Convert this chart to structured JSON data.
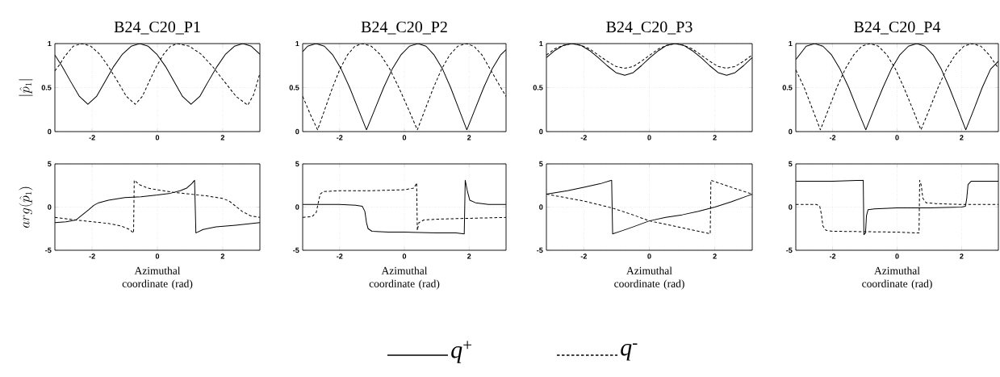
{
  "chart_data": [
    {
      "type": "line",
      "title": "B24_C20_P1",
      "ylabel": "|\\hat{p}_1|",
      "xlim": [
        -3.1416,
        3.1416
      ],
      "ylim": [
        0,
        1
      ],
      "xticks": [
        -2,
        0,
        2
      ],
      "yticks": [
        0,
        0.5,
        1
      ],
      "grid": true,
      "legend": "bottom",
      "series": [
        {
          "name": "*q*$^{+}$",
          "color": "#000000",
          "line_style": "solid",
          "x": [
            -3.14,
            -2.92,
            -2.66,
            -2.39,
            -2.13,
            -1.865,
            -1.6,
            -1.34,
            -1.07,
            -0.805,
            -0.54,
            -0.28,
            -0.02,
            0.25,
            0.51,
            0.77,
            1.03,
            1.3,
            1.56,
            1.83,
            2.09,
            2.36,
            2.62,
            2.88,
            3.14
          ],
          "values": [
            0.87,
            0.74,
            0.57,
            0.4,
            0.31,
            0.4,
            0.57,
            0.74,
            0.88,
            0.97,
            1,
            0.97,
            0.88,
            0.74,
            0.57,
            0.4,
            0.31,
            0.4,
            0.57,
            0.74,
            0.88,
            0.97,
            1,
            0.97,
            0.88
          ]
        },
        {
          "name": "*q*$^{-}$",
          "color": "#000000",
          "line_style": "dashed",
          "x": [
            -3.14,
            -2.98,
            -2.85,
            -2.58,
            -2.31,
            -2.04,
            -1.77,
            -1.5,
            -1.22,
            -0.95,
            -0.68,
            -0.46,
            -0.25,
            -0.03,
            0.19,
            0.4,
            0.62,
            0.98,
            1.34,
            1.69,
            2.05,
            2.41,
            2.77,
            2.95,
            3.14
          ],
          "values": [
            0.69,
            0.77,
            0.85,
            0.97,
            1,
            0.97,
            0.88,
            0.74,
            0.57,
            0.4,
            0.31,
            0.4,
            0.57,
            0.74,
            0.88,
            0.97,
            1,
            0.97,
            0.88,
            0.74,
            0.57,
            0.4,
            0.3,
            0.42,
            0.66
          ]
        }
      ]
    },
    {
      "type": "line",
      "title": "B24_C20_P2",
      "xlim": [
        -3.1416,
        3.1416
      ],
      "ylim": [
        0,
        1
      ],
      "xticks": [
        -2,
        0,
        2
      ],
      "yticks": [
        0,
        0.5,
        1
      ],
      "grid": true,
      "series": [
        {
          "color": "#000000",
          "line_style": "solid",
          "x": [
            -3.14,
            -2.99,
            -2.73,
            -2.47,
            -2.21,
            -1.95,
            -1.69,
            -1.43,
            -1.17,
            -0.905,
            -0.64,
            -0.375,
            -0.11,
            0.155,
            0.42,
            0.67,
            0.92,
            1.18,
            1.43,
            1.68,
            1.93,
            2.19,
            2.45,
            2.71,
            2.97,
            3.14
          ],
          "values": [
            0.91,
            0.97,
            1,
            0.97,
            0.87,
            0.71,
            0.5,
            0.26,
            0.02,
            0.26,
            0.5,
            0.71,
            0.87,
            0.97,
            1,
            0.97,
            0.87,
            0.71,
            0.5,
            0.26,
            0.02,
            0.26,
            0.5,
            0.71,
            0.87,
            0.93
          ]
        },
        {
          "color": "#000000",
          "line_style": "dashed",
          "x": [
            -3.14,
            -2.91,
            -2.68,
            -2.45,
            -2.22,
            -1.99,
            -1.76,
            -1.53,
            -1.3,
            -1.02,
            -0.73,
            -0.45,
            -0.17,
            0.12,
            0.4,
            0.65,
            0.9,
            1.15,
            1.4,
            1.65,
            1.9,
            2.15,
            2.4,
            2.65,
            2.9,
            3.14
          ],
          "values": [
            0.4,
            0.2,
            0.02,
            0.26,
            0.5,
            0.71,
            0.87,
            0.97,
            1,
            0.97,
            0.87,
            0.71,
            0.5,
            0.26,
            0.02,
            0.26,
            0.5,
            0.71,
            0.87,
            0.97,
            1,
            0.97,
            0.87,
            0.71,
            0.55,
            0.4
          ]
        }
      ]
    },
    {
      "type": "line",
      "title": "B24_C20_P3",
      "xlim": [
        -3.1416,
        3.1416
      ],
      "ylim": [
        0,
        1
      ],
      "xticks": [
        -2,
        0,
        2
      ],
      "yticks": [
        0,
        0.5,
        1
      ],
      "grid": true,
      "series": [
        {
          "color": "#000000",
          "line_style": "solid",
          "x": [
            -3.14,
            -2.89,
            -2.62,
            -2.36,
            -2.09,
            -1.82,
            -1.56,
            -1.29,
            -1.02,
            -0.75,
            -0.49,
            -0.24,
            0.02,
            0.28,
            0.53,
            0.79,
            1.05,
            1.31,
            1.58,
            1.84,
            2.1,
            2.36,
            2.62,
            2.88,
            3.14
          ],
          "values": [
            0.84,
            0.92,
            0.98,
            1,
            0.98,
            0.92,
            0.84,
            0.75,
            0.67,
            0.64,
            0.67,
            0.75,
            0.84,
            0.92,
            0.98,
            1,
            0.98,
            0.92,
            0.84,
            0.75,
            0.67,
            0.64,
            0.67,
            0.75,
            0.84
          ]
        },
        {
          "color": "#000000",
          "line_style": "dashed",
          "x": [
            -3.14,
            -2.89,
            -2.62,
            -2.36,
            -2.09,
            -1.82,
            -1.56,
            -1.29,
            -1.02,
            -0.75,
            -0.49,
            -0.24,
            0.02,
            0.28,
            0.53,
            0.79,
            1.05,
            1.31,
            1.58,
            1.84,
            2.1,
            2.36,
            2.62,
            2.88,
            3.14
          ],
          "values": [
            0.87,
            0.94,
            0.98,
            1,
            0.98,
            0.94,
            0.87,
            0.8,
            0.74,
            0.72,
            0.74,
            0.8,
            0.87,
            0.94,
            0.98,
            1,
            0.98,
            0.94,
            0.87,
            0.8,
            0.74,
            0.72,
            0.74,
            0.8,
            0.87
          ]
        }
      ]
    },
    {
      "type": "line",
      "title": "B24_C20_P4",
      "xlim": [
        -3.1416,
        3.1416
      ],
      "ylim": [
        0,
        1
      ],
      "xticks": [
        -2,
        0,
        2
      ],
      "yticks": [
        0,
        0.5,
        1
      ],
      "grid": true,
      "series": [
        {
          "color": "#000000",
          "line_style": "solid",
          "x": [
            -3.14,
            -2.82,
            -2.56,
            -2.3,
            -2.03,
            -1.77,
            -1.5,
            -1.24,
            -0.97,
            -0.71,
            -0.44,
            -0.18,
            0.08,
            0.35,
            0.61,
            0.86,
            1.12,
            1.37,
            1.62,
            1.88,
            2.13,
            2.39,
            2.64,
            2.9,
            3.14
          ],
          "values": [
            0.82,
            0.97,
            1,
            0.97,
            0.87,
            0.71,
            0.5,
            0.26,
            0.02,
            0.26,
            0.5,
            0.71,
            0.87,
            0.97,
            1,
            0.97,
            0.87,
            0.71,
            0.5,
            0.26,
            0.02,
            0.26,
            0.5,
            0.71,
            0.8
          ]
        },
        {
          "color": "#000000",
          "line_style": "dashed",
          "x": [
            -3.14,
            -2.88,
            -2.63,
            -2.38,
            -2.12,
            -1.87,
            -1.61,
            -1.35,
            -1.1,
            -0.84,
            -0.58,
            -0.31,
            -0.05,
            0.21,
            0.48,
            0.74,
            1.01,
            1.27,
            1.53,
            1.8,
            2.07,
            2.33,
            2.6,
            2.86,
            3.14
          ],
          "values": [
            0.7,
            0.5,
            0.26,
            0.02,
            0.26,
            0.5,
            0.71,
            0.87,
            0.97,
            1,
            0.97,
            0.87,
            0.71,
            0.5,
            0.26,
            0.02,
            0.26,
            0.5,
            0.71,
            0.87,
            0.97,
            1,
            0.97,
            0.87,
            0.72
          ]
        }
      ]
    },
    {
      "type": "line",
      "ylabel": "arg(\\hat{p}_1)",
      "xlabel": "Azimuthal coordinate (rad)",
      "xlim": [
        -3.1416,
        3.1416
      ],
      "ylim": [
        -5,
        5
      ],
      "xticks": [
        -2,
        0,
        2
      ],
      "yticks": [
        -5,
        0,
        5
      ],
      "grid": true,
      "series": [
        {
          "color": "#000000",
          "line_style": "solid",
          "x": [
            -3.14,
            -2.8,
            -2.5,
            -2.3,
            -2.1,
            -1.95,
            -1.8,
            -1.5,
            -1.0,
            -0.5,
            0,
            0.4,
            0.7,
            0.9,
            1.05,
            1.14,
            1.18,
            1.4,
            1.8,
            2.4,
            3.14
          ],
          "values": [
            -1.8,
            -1.7,
            -1.5,
            -0.9,
            -0.3,
            0.2,
            0.5,
            0.8,
            1.1,
            1.2,
            1.4,
            1.6,
            1.9,
            2.2,
            2.7,
            3.1,
            -3.0,
            -2.6,
            -2.3,
            -2.1,
            -1.8
          ]
        },
        {
          "color": "#000000",
          "line_style": "dashed",
          "x": [
            -3.14,
            -2.5,
            -2.0,
            -1.5,
            -1.1,
            -0.85,
            -0.73,
            -0.71,
            -0.55,
            -0.3,
            0,
            0.5,
            1.0,
            1.5,
            2.0,
            2.2,
            2.4,
            2.6,
            2.85,
            3.14
          ],
          "values": [
            -1.2,
            -1.5,
            -1.7,
            -1.9,
            -2.2,
            -2.6,
            -3.0,
            3.1,
            2.6,
            2.2,
            2.0,
            1.7,
            1.5,
            1.3,
            1.0,
            0.7,
            0.1,
            -0.5,
            -1.0,
            -1.2
          ]
        }
      ]
    },
    {
      "type": "line",
      "xlabel": "Azimuthal coordinate (rad)",
      "xlim": [
        -3.1416,
        3.1416
      ],
      "ylim": [
        -5,
        5
      ],
      "xticks": [
        -2,
        0,
        2
      ],
      "yticks": [
        -5,
        0,
        5
      ],
      "grid": true,
      "series": [
        {
          "color": "#000000",
          "line_style": "solid",
          "x": [
            -3.14,
            -2.0,
            -1.5,
            -1.3,
            -1.22,
            -1.17,
            -1.12,
            -1.0,
            -0.5,
            0,
            1.0,
            1.6,
            1.85,
            1.88,
            1.95,
            2.02,
            2.2,
            2.6,
            3.14
          ],
          "values": [
            0.3,
            0.3,
            0.2,
            0.1,
            -0.5,
            -1.8,
            -2.5,
            -2.8,
            -2.9,
            -2.9,
            -3.0,
            -3.0,
            -3.1,
            3.1,
            1.8,
            0.8,
            0.5,
            0.3,
            0.3
          ]
        },
        {
          "color": "#000000",
          "line_style": "dashed",
          "x": [
            -3.14,
            -2.85,
            -2.72,
            -2.66,
            -2.6,
            -2.5,
            -2.0,
            -1.0,
            0,
            0.3,
            0.38,
            0.4,
            0.45,
            0.6,
            1.0,
            2.0,
            3.14
          ],
          "values": [
            -1.2,
            -1.1,
            -0.6,
            0.5,
            1.5,
            1.8,
            1.9,
            1.9,
            2.0,
            2.2,
            2.8,
            -2.7,
            -1.8,
            -1.5,
            -1.4,
            -1.3,
            -1.2
          ]
        }
      ]
    },
    {
      "type": "line",
      "xlabel": "Azimuthal coordinate (rad)",
      "xlim": [
        -3.1416,
        3.1416
      ],
      "ylim": [
        -5,
        5
      ],
      "xticks": [
        -2,
        0,
        2
      ],
      "yticks": [
        -5,
        0,
        5
      ],
      "grid": true,
      "series": [
        {
          "color": "#000000",
          "line_style": "solid",
          "x": [
            -3.14,
            -2.5,
            -2.0,
            -1.5,
            -1.15,
            -1.12,
            -0.8,
            -0.5,
            0,
            0.5,
            1.0,
            1.5,
            2.0,
            2.5,
            3.0,
            3.14
          ],
          "values": [
            1.5,
            1.9,
            2.3,
            2.7,
            3.1,
            -3.1,
            -2.7,
            -2.3,
            -1.6,
            -1.2,
            -0.9,
            -0.5,
            0,
            0.6,
            1.3,
            1.5
          ]
        },
        {
          "color": "#000000",
          "line_style": "dashed",
          "x": [
            -3.14,
            -2.0,
            -1.14,
            -0.5,
            0,
            1.0,
            1.86,
            1.88,
            2.5,
            3.14
          ],
          "values": [
            1.5,
            0.7,
            -0.1,
            -0.9,
            -1.6,
            -2.4,
            -3.1,
            3.1,
            2.3,
            1.5
          ]
        }
      ]
    },
    {
      "type": "line",
      "xlabel": "Azimuthal coordinate (rad)",
      "xlim": [
        -3.1416,
        3.1416
      ],
      "ylim": [
        -5,
        5
      ],
      "xticks": [
        -2,
        0,
        2
      ],
      "yticks": [
        -5,
        0,
        5
      ],
      "grid": true,
      "series": [
        {
          "color": "#000000",
          "line_style": "solid",
          "x": [
            -3.14,
            -2.0,
            -1.05,
            -1.03,
            -0.98,
            -0.95,
            -0.9,
            -0.7,
            0,
            1.0,
            2.0,
            2.12,
            2.16,
            2.2,
            2.3,
            3.14
          ],
          "values": [
            3.0,
            3.0,
            3.1,
            -3.2,
            -3.0,
            -1.0,
            -0.3,
            -0.2,
            -0.1,
            -0.1,
            0.0,
            0.1,
            1.0,
            2.6,
            3.0,
            3.0
          ]
        },
        {
          "color": "#000000",
          "line_style": "dashed",
          "x": [
            -3.14,
            -2.5,
            -2.4,
            -2.35,
            -2.3,
            -2.2,
            -2.0,
            0,
            0.68,
            0.7,
            0.75,
            0.8,
            0.9,
            1.2,
            2.0,
            3.14
          ],
          "values": [
            0.3,
            0.3,
            0.1,
            -0.8,
            -2.2,
            -2.7,
            -2.8,
            -2.9,
            -3.0,
            3.1,
            2.5,
            1.0,
            0.5,
            0.4,
            0.3,
            0.3
          ]
        }
      ]
    }
  ]
}
